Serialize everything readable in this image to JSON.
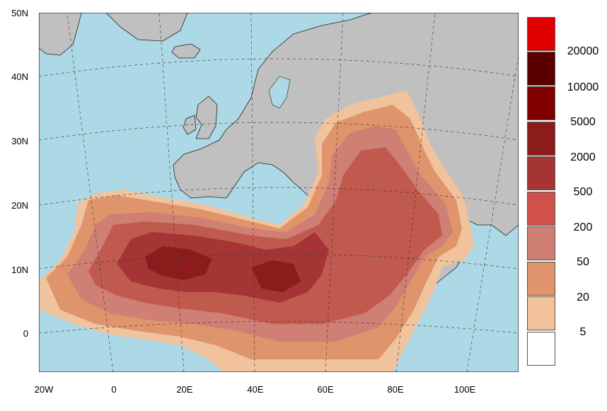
{
  "map": {
    "ocean_color": "#add8e6",
    "land_color": "#c0c0c0",
    "lat_labels": [
      "50N",
      "40N",
      "30N",
      "20N",
      "10N",
      "0"
    ],
    "lon_labels": [
      "20W",
      "0",
      "20E",
      "40E",
      "60E",
      "80E",
      "100E"
    ]
  },
  "legend": {
    "colors": [
      "#e00000",
      "#5a0000",
      "#800000",
      "#8c1c1c",
      "#a53535",
      "#d0524a",
      "#cf7f73",
      "#e0946c",
      "#f2c39a",
      "#ffffff"
    ],
    "labels": [
      "20000",
      "10000",
      "5000",
      "2000",
      "500",
      "200",
      "50",
      "20",
      "5"
    ]
  }
}
